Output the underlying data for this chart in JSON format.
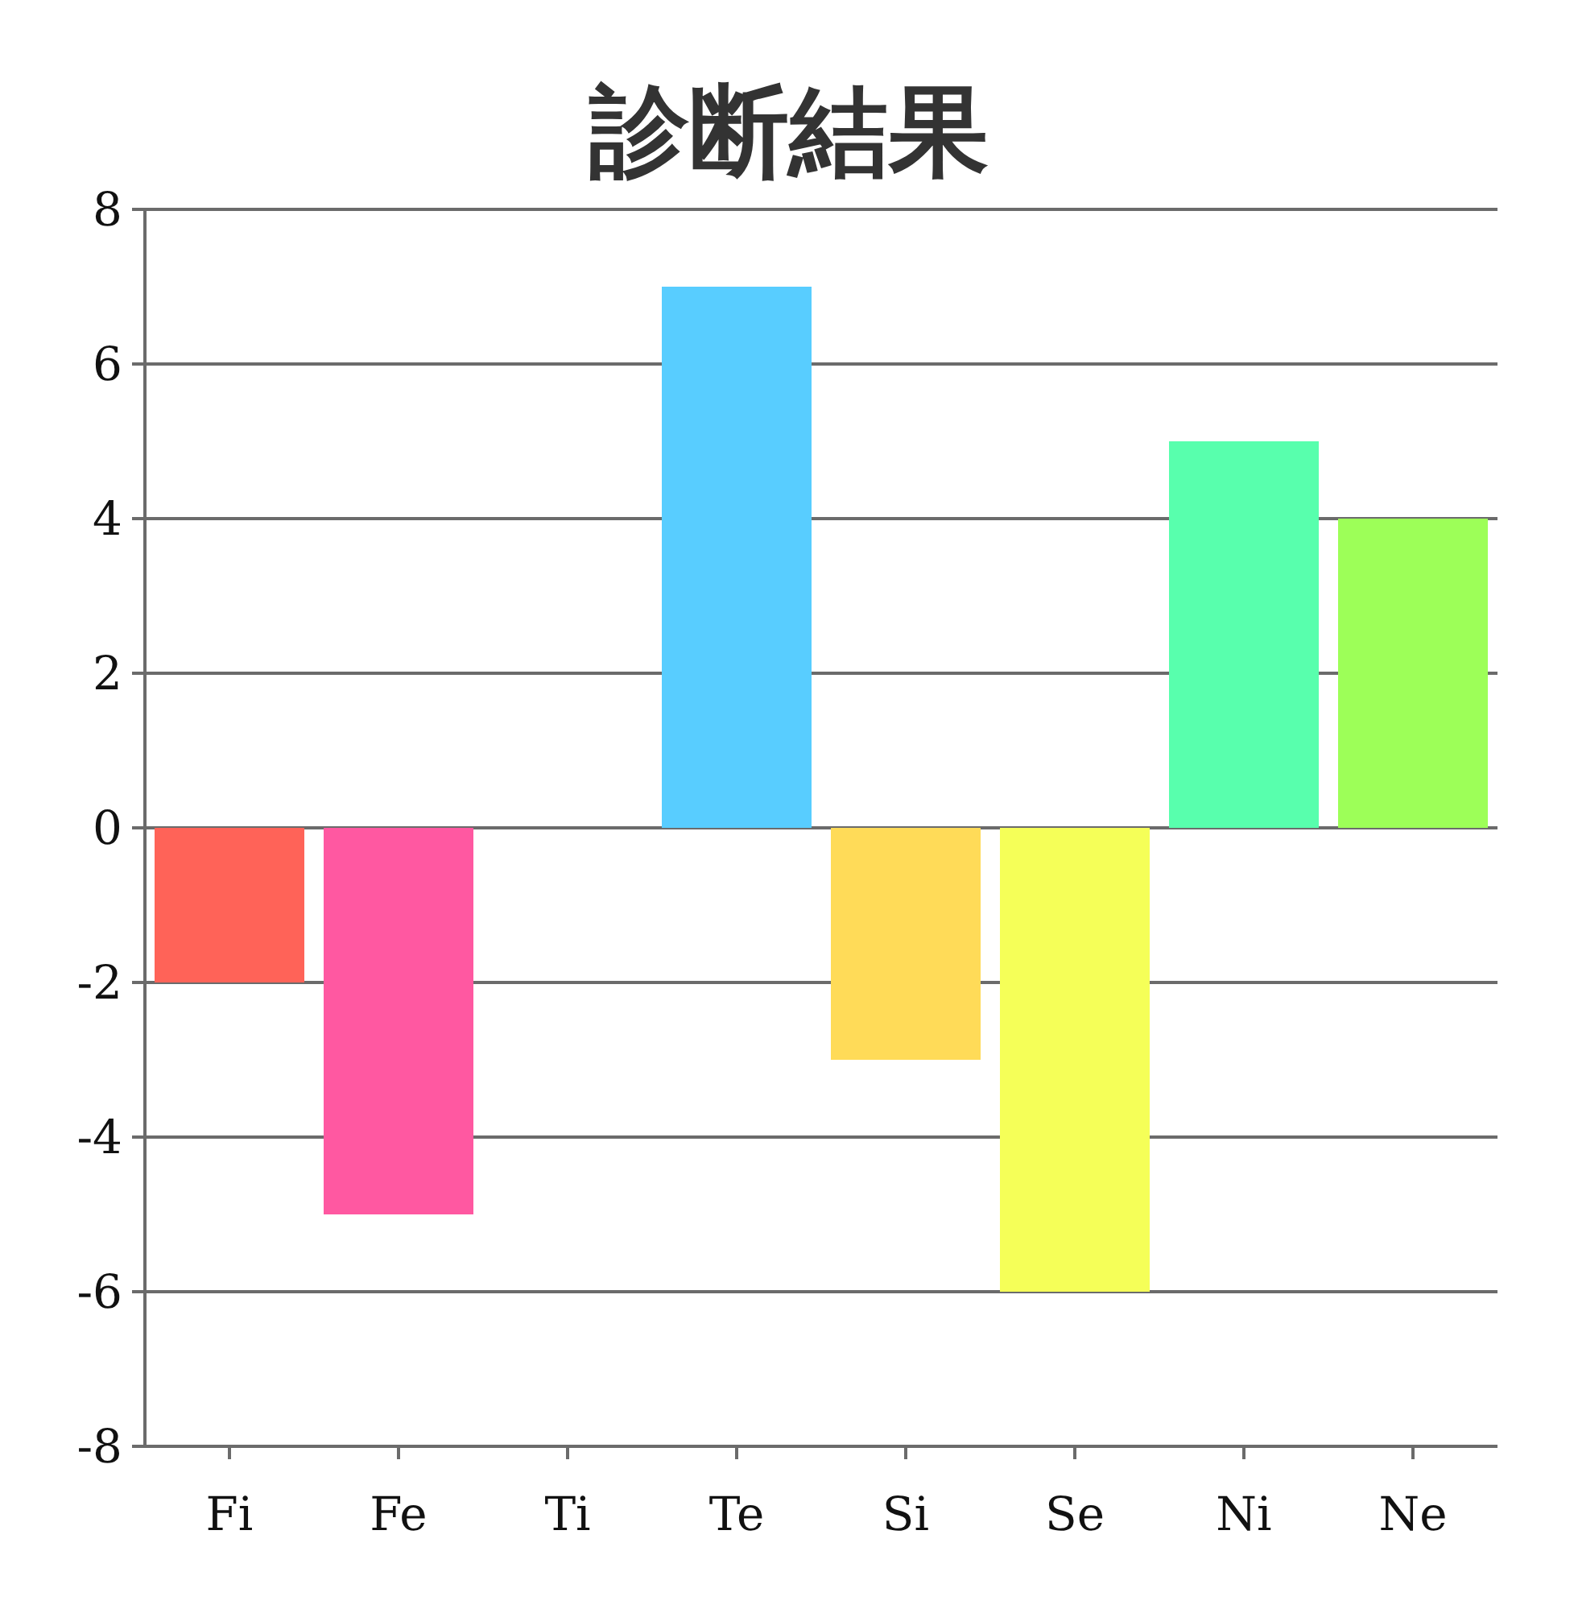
{
  "chart_data": {
    "type": "bar",
    "title": "診断結果",
    "categories": [
      "Fi",
      "Fe",
      "Ti",
      "Te",
      "Si",
      "Se",
      "Ni",
      "Ne"
    ],
    "values": [
      -2,
      -5,
      0,
      7,
      -3,
      -6,
      5,
      4
    ],
    "colors": [
      "#ff6358",
      "#ff58a1",
      "#58c8ff",
      "#58cdff",
      "#ffdb58",
      "#f5ff58",
      "#58ffad",
      "#9dff58"
    ],
    "ylim": [
      -8,
      8
    ],
    "yticks": [
      -8,
      -6,
      -4,
      -2,
      0,
      2,
      4,
      6,
      8
    ],
    "grid": "y"
  }
}
